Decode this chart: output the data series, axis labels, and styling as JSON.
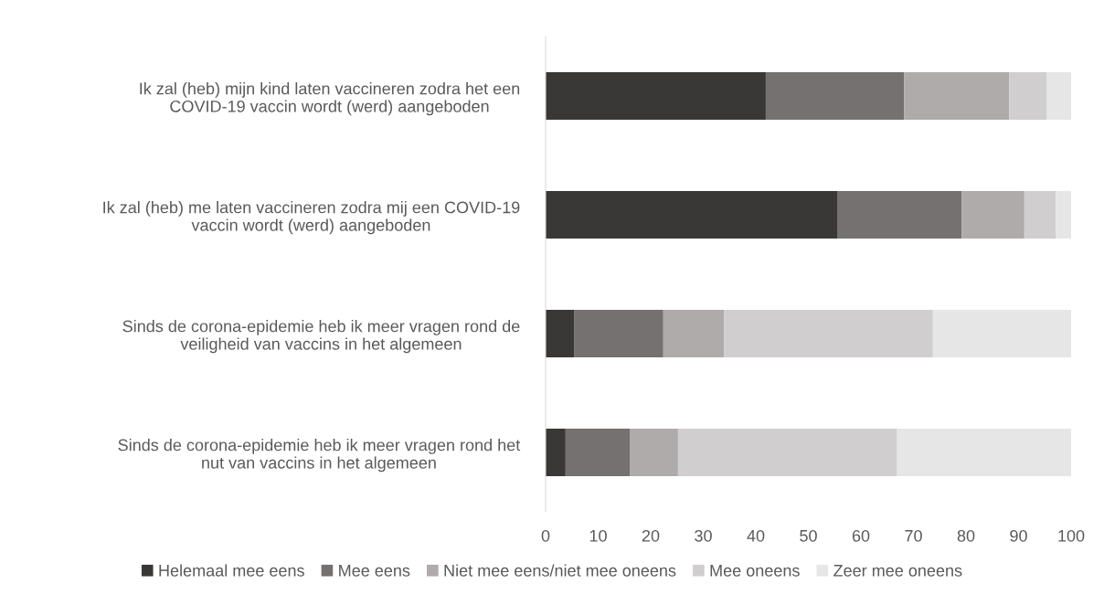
{
  "chart_data": {
    "type": "bar",
    "orientation": "horizontal",
    "stacked": true,
    "categories": [
      "Ik zal (heb) mijn kind laten vaccineren zodra het een\nCOVID-19 vaccin wordt (werd) aangeboden",
      "Ik zal (heb) me laten vaccineren zodra mij een COVID-19\nvaccin wordt (werd) aangeboden",
      "Sinds de corona-epidemie heb ik meer vragen rond de\nveiligheid van vaccins in het algemeen",
      "Sinds de corona-epidemie heb ik meer vragen rond het\nnut van vaccins in het algemeen"
    ],
    "series": [
      {
        "name": "Helemaal mee eens",
        "color": "#3a3836",
        "values": [
          41.9,
          55.6,
          5.5,
          3.8
        ]
      },
      {
        "name": "Mee eens",
        "color": "#757170",
        "values": [
          26.3,
          23.6,
          16.9,
          12.3
        ]
      },
      {
        "name": "Niet mee eens/niet mee oneens",
        "color": "#afabaa",
        "values": [
          20.0,
          11.9,
          11.6,
          9.1
        ]
      },
      {
        "name": "Mee oneens",
        "color": "#d0cece",
        "values": [
          7.2,
          6.0,
          39.7,
          41.7
        ]
      },
      {
        "name": "Zeer mee oneens",
        "color": "#e7e6e6",
        "values": [
          4.6,
          2.9,
          26.3,
          33.1
        ]
      }
    ],
    "xlim": [
      0,
      100
    ],
    "xticks": [
      0,
      10,
      20,
      30,
      40,
      50,
      60,
      70,
      80,
      90,
      100
    ],
    "grid": false,
    "legend": "bottom"
  }
}
